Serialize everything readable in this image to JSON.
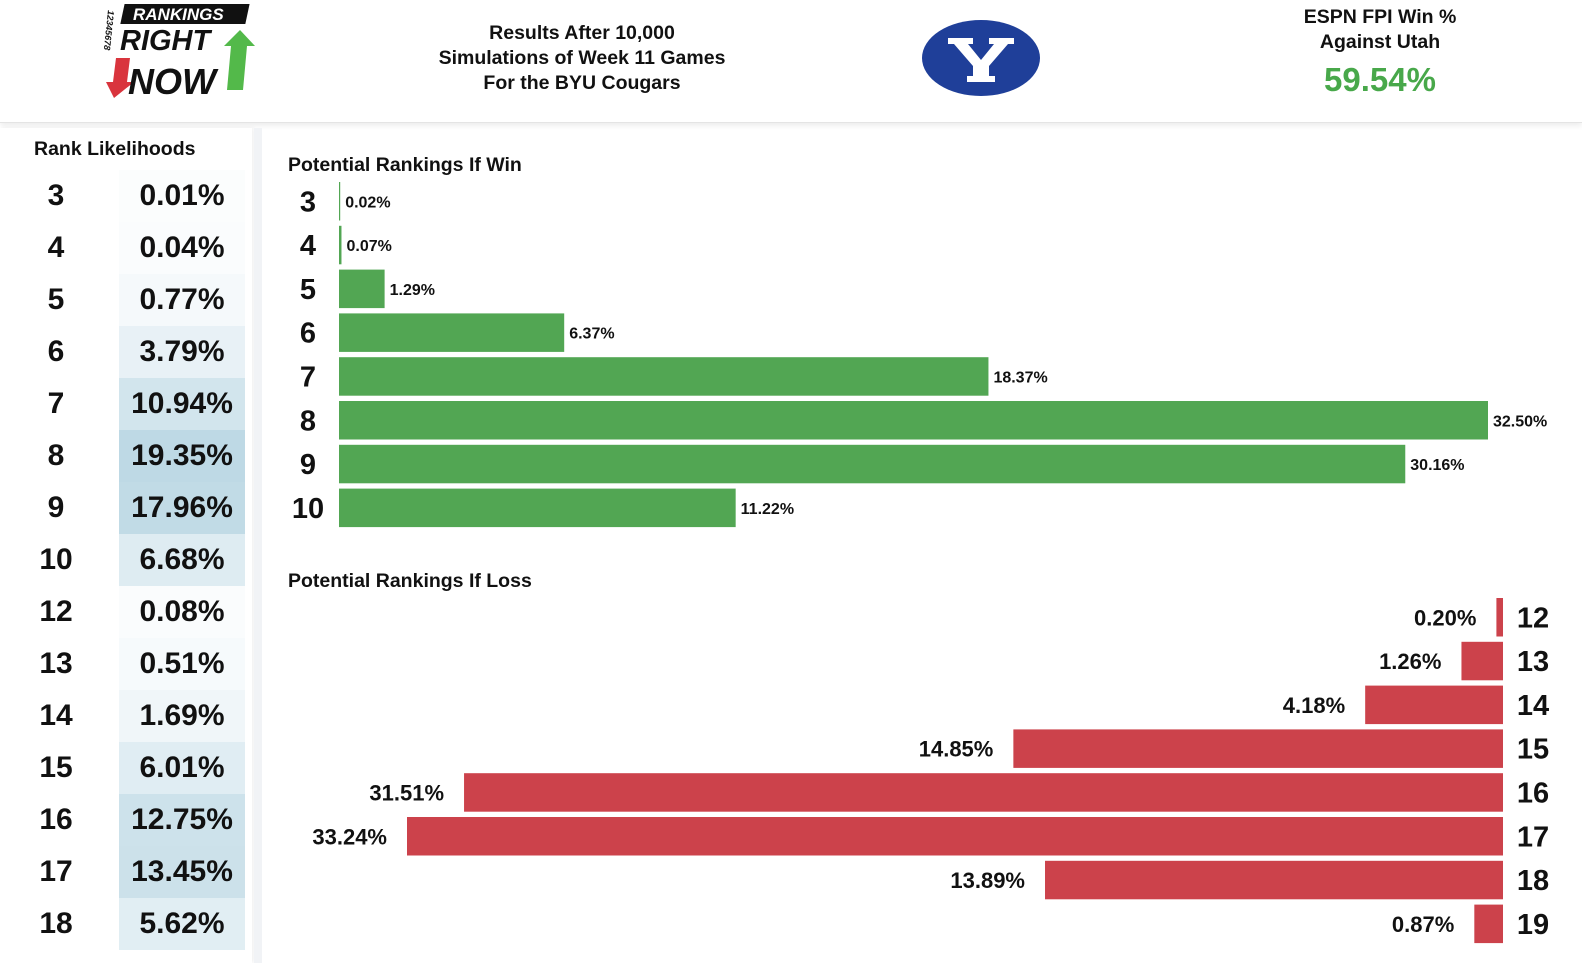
{
  "header": {
    "logo": {
      "top_word": "RANKINGS",
      "middle_word": "RIGHT",
      "bottom_word": "NOW",
      "side_digits": "12345678"
    },
    "title_lines": [
      "Results After 10,000",
      "Simulations of Week 11 Games",
      "For the BYU Cougars"
    ],
    "team_logo": "byu-y-icon",
    "fpi_label_lines": [
      "ESPN FPI Win %",
      "Against Utah"
    ],
    "fpi_value": "59.54%"
  },
  "colors": {
    "win": "#52a653",
    "loss": "#cc424b",
    "fpi_value": "#48a84a",
    "heat_base": "#cfe2ec"
  },
  "rank_likelihoods": {
    "title": "Rank Likelihoods",
    "rows": [
      {
        "rank": "3",
        "pct": "0.01%",
        "value": 0.01
      },
      {
        "rank": "4",
        "pct": "0.04%",
        "value": 0.04
      },
      {
        "rank": "5",
        "pct": "0.77%",
        "value": 0.77
      },
      {
        "rank": "6",
        "pct": "3.79%",
        "value": 3.79
      },
      {
        "rank": "7",
        "pct": "10.94%",
        "value": 10.94
      },
      {
        "rank": "8",
        "pct": "19.35%",
        "value": 19.35
      },
      {
        "rank": "9",
        "pct": "17.96%",
        "value": 17.96
      },
      {
        "rank": "10",
        "pct": "6.68%",
        "value": 6.68
      },
      {
        "rank": "12",
        "pct": "0.08%",
        "value": 0.08
      },
      {
        "rank": "13",
        "pct": "0.51%",
        "value": 0.51
      },
      {
        "rank": "14",
        "pct": "1.69%",
        "value": 1.69
      },
      {
        "rank": "15",
        "pct": "6.01%",
        "value": 6.01
      },
      {
        "rank": "16",
        "pct": "12.75%",
        "value": 12.75
      },
      {
        "rank": "17",
        "pct": "13.45%",
        "value": 13.45
      },
      {
        "rank": "18",
        "pct": "5.62%",
        "value": 5.62
      }
    ]
  },
  "chart_data": [
    {
      "type": "bar",
      "orientation": "horizontal",
      "title": "Potential Rankings If Win",
      "categories": [
        "3",
        "4",
        "5",
        "6",
        "7",
        "8",
        "9",
        "10"
      ],
      "values": [
        0.02,
        0.07,
        1.29,
        6.37,
        18.37,
        32.5,
        30.16,
        11.22
      ],
      "labels": [
        "0.02%",
        "0.07%",
        "1.29%",
        "6.37%",
        "18.37%",
        "32.50%",
        "30.16%",
        "11.22%"
      ],
      "color": "#52a653",
      "xlim": [
        0,
        32.5
      ],
      "bar_direction": "left-to-right"
    },
    {
      "type": "bar",
      "orientation": "horizontal",
      "title": "Potential Rankings If Loss",
      "categories": [
        "12",
        "13",
        "14",
        "15",
        "16",
        "17",
        "18",
        "19"
      ],
      "values": [
        0.2,
        1.26,
        4.18,
        14.85,
        31.51,
        33.24,
        13.89,
        0.87
      ],
      "labels": [
        "0.20%",
        "1.26%",
        "4.18%",
        "14.85%",
        "31.51%",
        "33.24%",
        "13.89%",
        "0.87%"
      ],
      "color": "#cc424b",
      "xlim": [
        0,
        33.24
      ],
      "bar_direction": "right-to-left"
    }
  ]
}
